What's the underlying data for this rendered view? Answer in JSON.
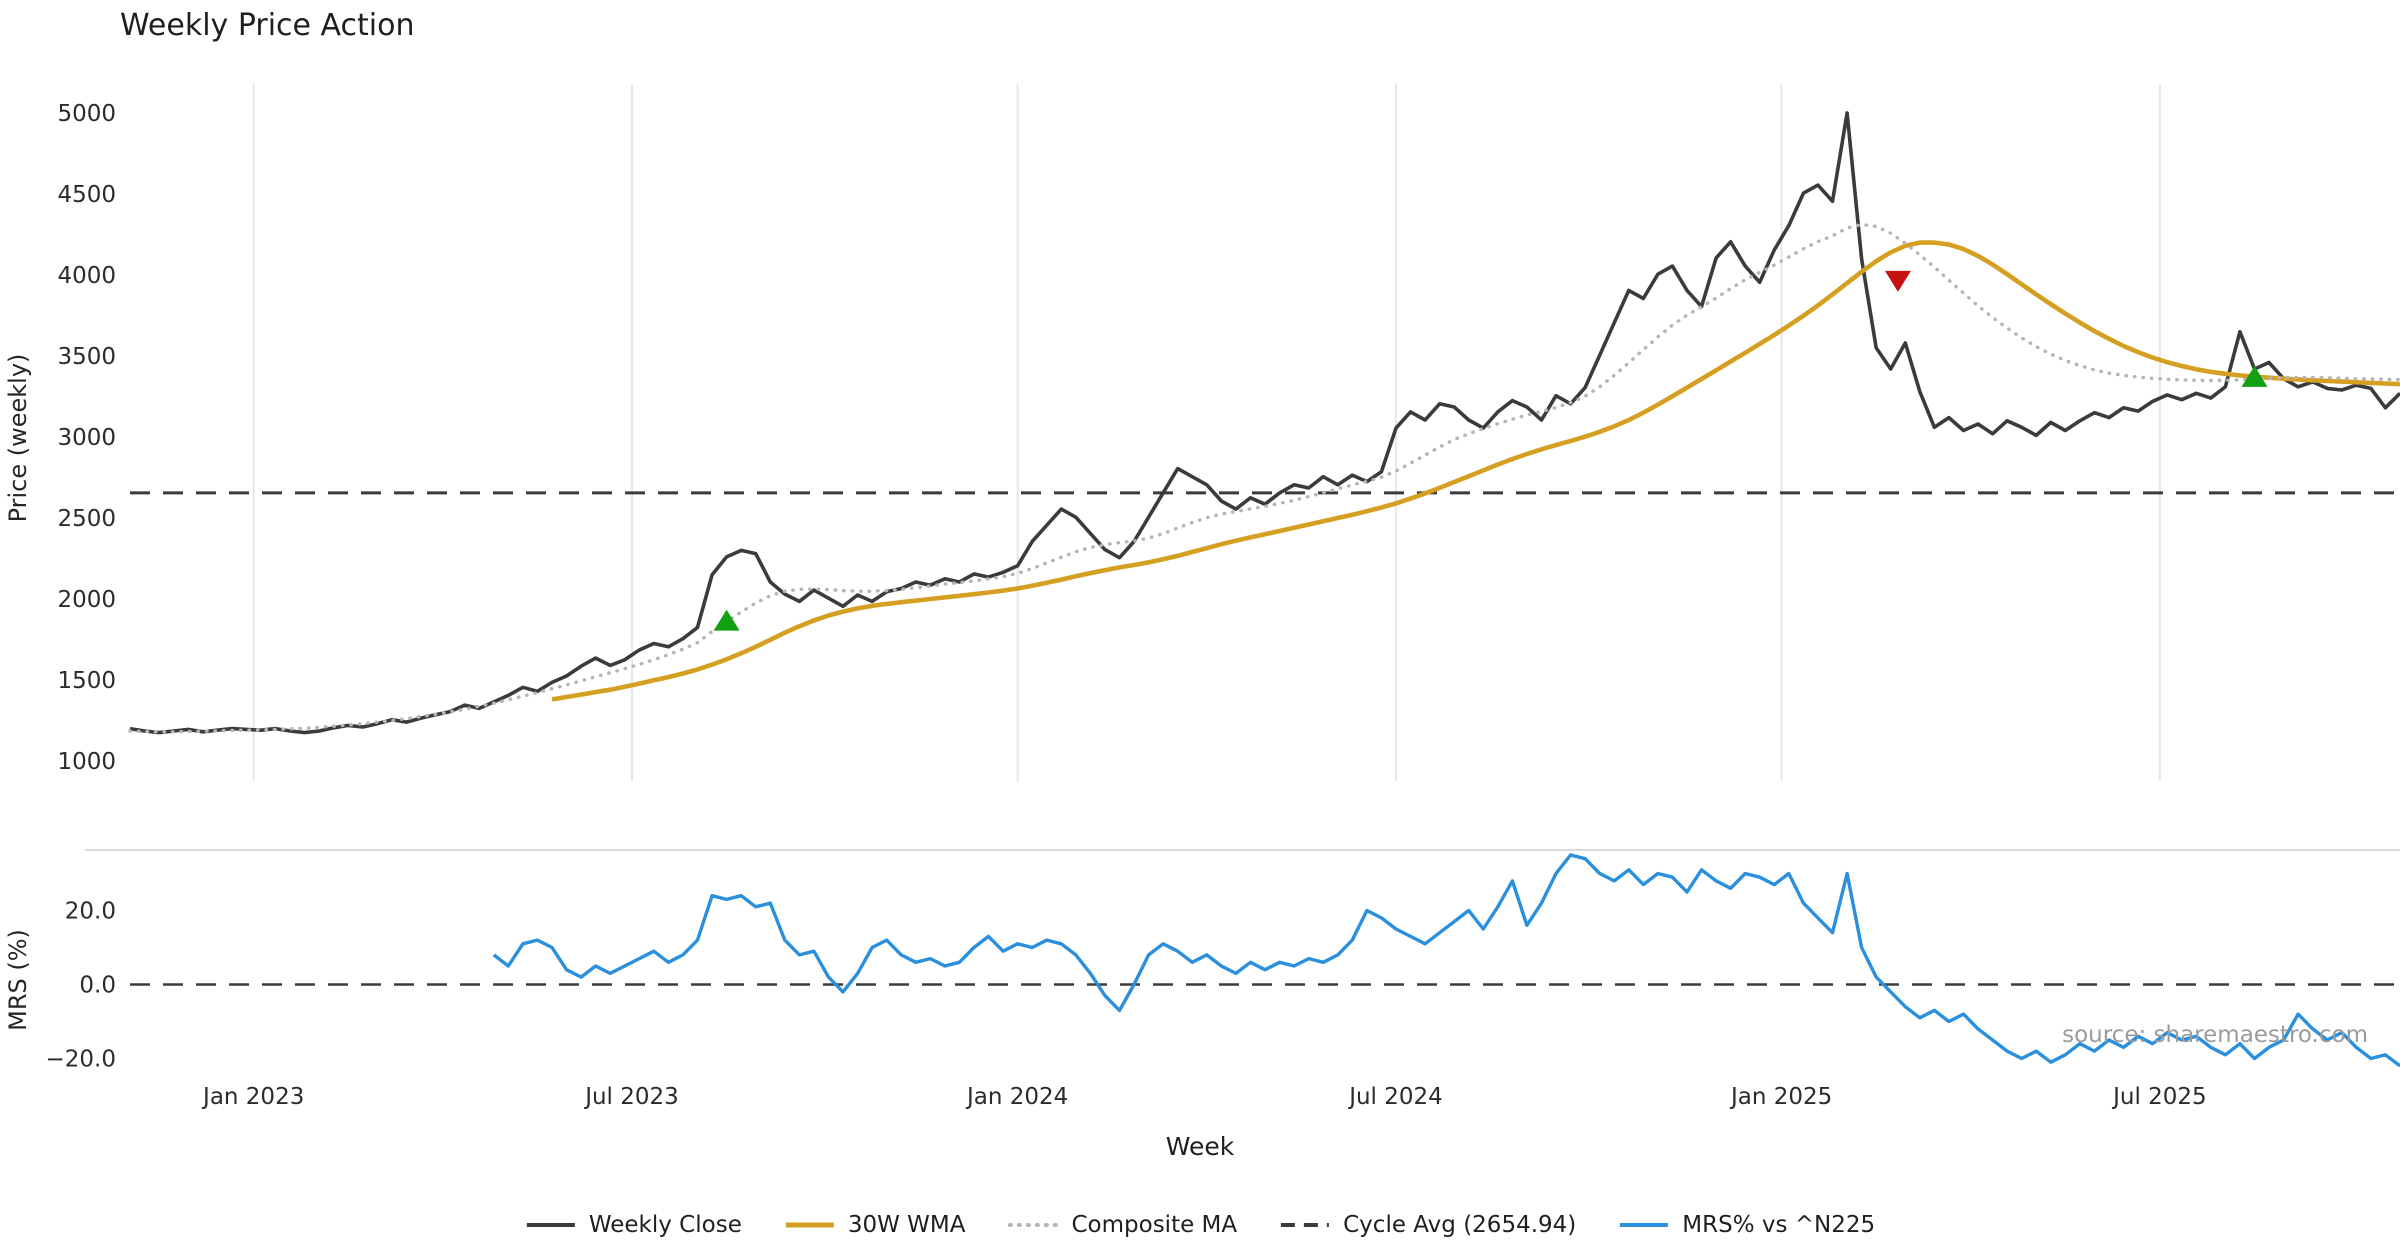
{
  "chart_data": {
    "type": "line",
    "title": "Weekly Price Action",
    "xlabel": "Week",
    "watermark": "source: sharemaestro.com",
    "weeks_total": 156,
    "price_panel": {
      "ylabel": "Price (weekly)",
      "ylim": [
        1000,
        5000
      ],
      "ticks": [
        5000,
        4500,
        4000,
        3500,
        3000,
        2500,
        2000,
        1500,
        1000
      ]
    },
    "mrs_panel": {
      "ylabel": "MRS (%)",
      "ylim": [
        -25,
        37
      ],
      "ticks": [
        {
          "value": 20,
          "label": "20.0"
        },
        {
          "value": 0,
          "label": "0.0"
        },
        {
          "value": -20,
          "label": "−20.0"
        }
      ]
    },
    "x_ticks": [
      {
        "week": 8.5,
        "label": "Jan 2023"
      },
      {
        "week": 34.5,
        "label": "Jul 2023"
      },
      {
        "week": 61,
        "label": "Jan 2024"
      },
      {
        "week": 87,
        "label": "Jul 2024"
      },
      {
        "week": 113.5,
        "label": "Jan 2025"
      },
      {
        "week": 139.5,
        "label": "Jul 2025"
      }
    ],
    "cycle_avg": 2654.94,
    "series": [
      {
        "id": "weekly-close",
        "name": "Weekly Close",
        "panel": "price",
        "color": "#3b3b3b",
        "style": "solid",
        "width": 3.6,
        "start_week": 0,
        "values": [
          1200,
          1185,
          1175,
          1185,
          1195,
          1180,
          1190,
          1200,
          1195,
          1190,
          1200,
          1185,
          1175,
          1185,
          1205,
          1220,
          1210,
          1230,
          1255,
          1240,
          1265,
          1285,
          1305,
          1345,
          1325,
          1365,
          1405,
          1455,
          1430,
          1485,
          1525,
          1585,
          1635,
          1590,
          1625,
          1685,
          1725,
          1705,
          1755,
          1825,
          2150,
          2260,
          2300,
          2280,
          2105,
          2030,
          1985,
          2055,
          2005,
          1955,
          2025,
          1985,
          2045,
          2065,
          2105,
          2085,
          2125,
          2105,
          2155,
          2135,
          2165,
          2205,
          2355,
          2455,
          2555,
          2505,
          2405,
          2305,
          2255,
          2355,
          2505,
          2655,
          2805,
          2755,
          2705,
          2605,
          2555,
          2625,
          2585,
          2655,
          2705,
          2685,
          2755,
          2705,
          2765,
          2725,
          2785,
          3055,
          3155,
          3105,
          3205,
          3185,
          3105,
          3055,
          3155,
          3225,
          3185,
          3105,
          3255,
          3205,
          3305,
          3505,
          3705,
          3905,
          3855,
          4005,
          4055,
          3905,
          3805,
          4105,
          4205,
          4055,
          3955,
          4155,
          4305,
          4505,
          4555,
          4455,
          5000,
          4100,
          3550,
          3420,
          3580,
          3280,
          3060,
          3120,
          3040,
          3080,
          3020,
          3100,
          3060,
          3010,
          3090,
          3040,
          3100,
          3150,
          3120,
          3180,
          3160,
          3220,
          3260,
          3230,
          3270,
          3240,
          3310,
          3650,
          3420,
          3460,
          3360,
          3310,
          3340,
          3300,
          3290,
          3320,
          3300,
          3180,
          3270
        ]
      },
      {
        "id": "wma-30w",
        "name": "30W WMA",
        "panel": "price",
        "color": "#d5a021",
        "style": "solid",
        "width": 4.6,
        "start_week": 29,
        "values": [
          1380,
          1395,
          1410,
          1425,
          1440,
          1458,
          1478,
          1498,
          1518,
          1540,
          1565,
          1595,
          1628,
          1665,
          1705,
          1748,
          1792,
          1832,
          1868,
          1898,
          1922,
          1942,
          1958,
          1970,
          1980,
          1990,
          2000,
          2010,
          2020,
          2030,
          2040,
          2052,
          2065,
          2082,
          2100,
          2120,
          2140,
          2160,
          2178,
          2195,
          2210,
          2226,
          2245,
          2266,
          2290,
          2314,
          2338,
          2360,
          2380,
          2400,
          2420,
          2440,
          2460,
          2480,
          2500,
          2520,
          2542,
          2565,
          2590,
          2620,
          2652,
          2686,
          2722,
          2758,
          2794,
          2830,
          2864,
          2895,
          2924,
          2950,
          2976,
          3002,
          3032,
          3066,
          3105,
          3150,
          3200,
          3252,
          3305,
          3358,
          3412,
          3466,
          3520,
          3575,
          3630,
          3688,
          3748,
          3812,
          3880,
          3950,
          4020,
          4085,
          4140,
          4180,
          4200,
          4200,
          4188,
          4160,
          4118,
          4065,
          4005,
          3942,
          3880,
          3820,
          3762,
          3706,
          3654,
          3606,
          3562,
          3524,
          3490,
          3462,
          3438,
          3418,
          3402,
          3390,
          3380,
          3372,
          3366,
          3360,
          3355,
          3350,
          3346,
          3342,
          3338,
          3334,
          3330,
          3326
        ]
      },
      {
        "id": "composite-ma",
        "name": "Composite MA",
        "panel": "price",
        "color": "#b5b5b5",
        "style": "dotted",
        "width": 3.4,
        "start_week": 0,
        "values": [
          1185,
          1182,
          1180,
          1180,
          1182,
          1184,
          1186,
          1188,
          1190,
          1192,
          1195,
          1198,
          1202,
          1208,
          1215,
          1222,
          1230,
          1240,
          1250,
          1262,
          1274,
          1288,
          1303,
          1320,
          1338,
          1357,
          1378,
          1400,
          1422,
          1446,
          1470,
          1495,
          1520,
          1545,
          1570,
          1596,
          1625,
          1656,
          1690,
          1730,
          1800,
          1860,
          1920,
          1975,
          2020,
          2048,
          2060,
          2062,
          2058,
          2052,
          2048,
          2048,
          2052,
          2060,
          2070,
          2080,
          2092,
          2102,
          2112,
          2124,
          2138,
          2158,
          2188,
          2222,
          2258,
          2292,
          2318,
          2336,
          2348,
          2358,
          2376,
          2404,
          2438,
          2472,
          2502,
          2524,
          2540,
          2556,
          2572,
          2590,
          2610,
          2632,
          2656,
          2680,
          2704,
          2726,
          2752,
          2790,
          2838,
          2888,
          2938,
          2984,
          3020,
          3052,
          3082,
          3110,
          3136,
          3158,
          3182,
          3212,
          3252,
          3310,
          3380,
          3458,
          3538,
          3618,
          3690,
          3752,
          3804,
          3858,
          3916,
          3970,
          4016,
          4062,
          4112,
          4162,
          4206,
          4242,
          4290,
          4312,
          4300,
          4258,
          4195,
          4125,
          4048,
          3968,
          3888,
          3810,
          3738,
          3672,
          3612,
          3558,
          3512,
          3472,
          3440,
          3414,
          3394,
          3380,
          3370,
          3362,
          3356,
          3352,
          3350,
          3349,
          3350,
          3353,
          3358,
          3362,
          3366,
          3368,
          3368,
          3366,
          3363,
          3360,
          3358,
          3356,
          3354
        ]
      },
      {
        "id": "mrs",
        "name": "MRS% vs ^N225",
        "panel": "mrs",
        "color": "#2a8fdd",
        "style": "solid",
        "width": 3.4,
        "start_week": 25,
        "values": [
          8,
          5,
          11,
          12,
          10,
          4,
          2,
          5,
          3,
          5,
          7,
          9,
          6,
          8,
          12,
          24,
          23,
          24,
          21,
          22,
          12,
          8,
          9,
          2,
          -2,
          3,
          10,
          12,
          8,
          6,
          7,
          5,
          6,
          10,
          13,
          9,
          11,
          10,
          12,
          11,
          8,
          3,
          -3,
          -7,
          0,
          8,
          11,
          9,
          6,
          8,
          5,
          3,
          6,
          4,
          6,
          5,
          7,
          6,
          8,
          12,
          20,
          18,
          15,
          13,
          11,
          14,
          17,
          20,
          15,
          21,
          28,
          16,
          22,
          30,
          35,
          34,
          30,
          28,
          31,
          27,
          30,
          29,
          25,
          31,
          28,
          26,
          30,
          29,
          27,
          30,
          22,
          18,
          14,
          30,
          10,
          2,
          -2,
          -6,
          -9,
          -7,
          -10,
          -8,
          -12,
          -15,
          -18,
          -20,
          -18,
          -21,
          -19,
          -16,
          -18,
          -15,
          -17,
          -14,
          -16,
          -13,
          -15,
          -14,
          -17,
          -19,
          -16,
          -20,
          -17,
          -15,
          -8,
          -12,
          -15,
          -13,
          -17,
          -20,
          -19,
          -22
        ]
      }
    ],
    "markers": [
      {
        "shape": "triangle-up",
        "color": "#13a113",
        "week": 41,
        "price": 1860
      },
      {
        "shape": "triangle-down",
        "color": "#c41111",
        "week": 121.5,
        "price": 3970
      },
      {
        "shape": "triangle-up",
        "color": "#13a113",
        "week": 146,
        "price": 3365
      }
    ],
    "legend": [
      {
        "label": "Weekly Close",
        "color": "#3b3b3b",
        "style": "solid"
      },
      {
        "label": "30W WMA",
        "color": "#d5a021",
        "style": "solid"
      },
      {
        "label": "Composite MA",
        "color": "#b5b5b5",
        "style": "dotted"
      },
      {
        "label": "Cycle Avg (2654.94)",
        "color": "#3b3b3b",
        "style": "dashed"
      },
      {
        "label": "MRS% vs ^N225",
        "color": "#2a8fdd",
        "style": "solid"
      }
    ]
  }
}
